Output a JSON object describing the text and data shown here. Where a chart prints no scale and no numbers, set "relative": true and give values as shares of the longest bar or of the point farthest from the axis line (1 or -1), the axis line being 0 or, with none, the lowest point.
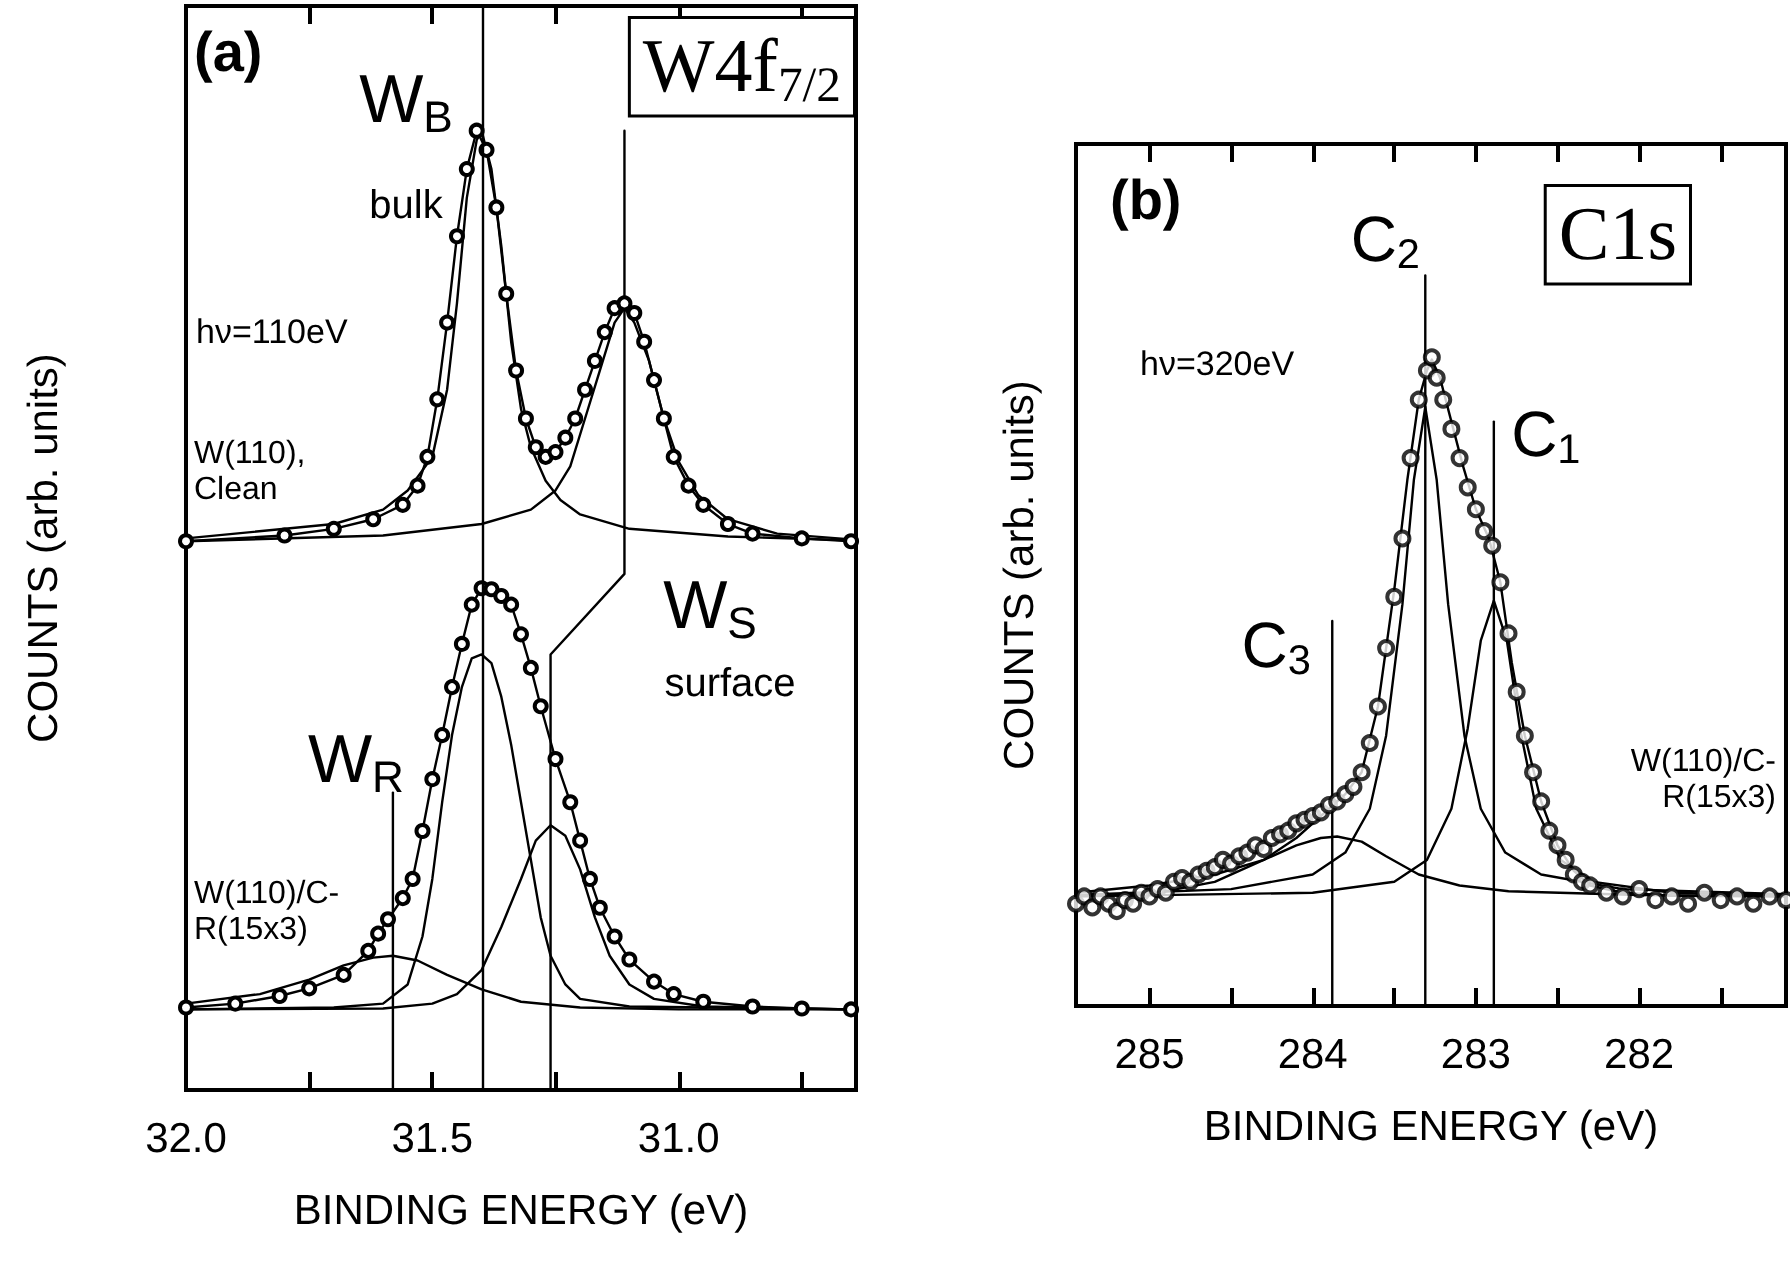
{
  "chart_data": [
    {
      "type": "line",
      "title": "(a)",
      "subtitle": "W4f$_{7/2}$",
      "xlabel": "BINDING ENERGY (eV)",
      "ylabel": "COUNTS (arb. units)",
      "relative": true,
      "tick_labels": "x",
      "xlim": [
        32.0,
        30.64
      ],
      "xticks": [
        {
          "value": 32,
          "label": "32.0"
        },
        {
          "value": 31.75,
          "label": null
        },
        31.5,
        {
          "value": 31.25,
          "label": null
        },
        {
          "value": 31,
          "label": "31.0"
        },
        {
          "value": 30.75,
          "label": null
        }
      ],
      "ref_lines": [
        {
          "axis": "x",
          "value": 31.4,
          "color": "#000000"
        }
      ],
      "annotations": [
        "W$_{B}$",
        "bulk",
        "W$_{S}$",
        "surface",
        "W$_{R}$",
        "hν=110eV",
        "W(110),\nClean",
        "W(110)/C-\nR(15x3)"
      ],
      "series": [
        {
          "color": "#000000",
          "marker": "circle",
          "x": [
            32.0,
            31.8,
            31.7,
            31.62,
            31.56,
            31.53,
            31.51,
            31.49,
            31.47,
            31.45,
            31.43,
            31.41,
            31.39,
            31.37,
            31.35,
            31.33,
            31.31,
            31.29,
            31.27,
            31.25,
            31.23,
            31.21,
            31.19,
            31.17,
            31.15,
            31.13,
            31.11,
            31.09,
            31.07,
            31.05,
            31.03,
            31.01,
            30.98,
            30.95,
            30.9,
            30.85,
            30.75,
            30.65
          ],
          "values": [
            0.572,
            0.578,
            0.585,
            0.595,
            0.61,
            0.63,
            0.66,
            0.72,
            0.8,
            0.89,
            0.96,
            1.0,
            0.98,
            0.92,
            0.83,
            0.75,
            0.7,
            0.67,
            0.66,
            0.665,
            0.68,
            0.7,
            0.73,
            0.76,
            0.79,
            0.815,
            0.82,
            0.81,
            0.78,
            0.74,
            0.7,
            0.66,
            0.63,
            0.61,
            0.59,
            0.58,
            0.575,
            0.572
          ]
        },
        {
          "color": "#000000",
          "marker": "none",
          "x": [
            32.0,
            31.7,
            31.6,
            31.55,
            31.5,
            31.47,
            31.45,
            31.43,
            31.41,
            31.4,
            31.38,
            31.36,
            31.34,
            31.32,
            31.3,
            31.27,
            31.24,
            31.2,
            31.1,
            30.9,
            30.65
          ],
          "values": [
            0.575,
            0.59,
            0.605,
            0.625,
            0.66,
            0.73,
            0.82,
            0.93,
            0.99,
            1.0,
            0.96,
            0.88,
            0.78,
            0.71,
            0.67,
            0.635,
            0.615,
            0.6,
            0.585,
            0.577,
            0.573
          ]
        },
        {
          "color": "#000000",
          "marker": "none",
          "x": [
            32.0,
            31.6,
            31.4,
            31.3,
            31.25,
            31.22,
            31.19,
            31.16,
            31.13,
            31.11,
            31.09,
            31.06,
            31.03,
            31.0,
            30.96,
            30.9,
            30.8,
            30.65
          ],
          "values": [
            0.572,
            0.578,
            0.59,
            0.605,
            0.625,
            0.65,
            0.7,
            0.75,
            0.8,
            0.815,
            0.8,
            0.76,
            0.7,
            0.655,
            0.62,
            0.595,
            0.58,
            0.574
          ]
        },
        {
          "color": "#000000",
          "marker": "circle",
          "x": [
            32.0,
            31.9,
            31.81,
            31.75,
            31.68,
            31.63,
            31.61,
            31.59,
            31.56,
            31.54,
            31.52,
            31.5,
            31.48,
            31.46,
            31.44,
            31.42,
            31.4,
            31.38,
            31.36,
            31.34,
            31.32,
            31.3,
            31.28,
            31.25,
            31.22,
            31.2,
            31.18,
            31.16,
            31.13,
            31.1,
            31.05,
            31.01,
            30.95,
            30.85,
            30.75,
            30.65
          ],
          "values": [
            0.086,
            0.09,
            0.098,
            0.106,
            0.12,
            0.145,
            0.163,
            0.178,
            0.2,
            0.22,
            0.27,
            0.324,
            0.37,
            0.42,
            0.465,
            0.506,
            0.523,
            0.522,
            0.515,
            0.506,
            0.475,
            0.44,
            0.4,
            0.345,
            0.3,
            0.26,
            0.22,
            0.19,
            0.16,
            0.136,
            0.113,
            0.1,
            0.092,
            0.087,
            0.085,
            0.084
          ]
        },
        {
          "color": "#000000",
          "marker": "none",
          "x": [
            32.0,
            31.7,
            31.6,
            31.55,
            31.52,
            31.5,
            31.48,
            31.46,
            31.44,
            31.42,
            31.4,
            31.38,
            31.36,
            31.34,
            31.32,
            31.3,
            31.28,
            31.26,
            31.23,
            31.2,
            31.1,
            30.65
          ],
          "values": [
            0.084,
            0.086,
            0.09,
            0.11,
            0.16,
            0.22,
            0.3,
            0.37,
            0.42,
            0.45,
            0.454,
            0.445,
            0.41,
            0.36,
            0.3,
            0.24,
            0.18,
            0.14,
            0.11,
            0.095,
            0.087,
            0.084
          ]
        },
        {
          "color": "#000000",
          "marker": "none",
          "x": [
            32.0,
            31.6,
            31.5,
            31.45,
            31.4,
            31.36,
            31.32,
            31.29,
            31.26,
            31.23,
            31.2,
            31.17,
            31.14,
            31.1,
            31.05,
            30.95,
            30.65
          ],
          "values": [
            0.084,
            0.085,
            0.09,
            0.1,
            0.125,
            0.17,
            0.22,
            0.26,
            0.276,
            0.265,
            0.23,
            0.18,
            0.14,
            0.11,
            0.095,
            0.087,
            0.084
          ]
        },
        {
          "color": "#000000",
          "marker": "none",
          "x": [
            32.0,
            31.85,
            31.75,
            31.68,
            31.62,
            31.58,
            31.53,
            31.47,
            31.4,
            31.32,
            31.2,
            31.0,
            30.65
          ],
          "values": [
            0.09,
            0.1,
            0.115,
            0.13,
            0.138,
            0.14,
            0.135,
            0.12,
            0.105,
            0.092,
            0.086,
            0.084,
            0.084
          ]
        },
        {
          "color": "#000000",
          "marker": "none",
          "x": [
            31.58,
            31.58
          ],
          "values": [
            0,
            0.31
          ]
        },
        {
          "color": "#000000",
          "marker": "none",
          "x": [
            31.11,
            31.11,
            31.26,
            31.26
          ],
          "values": [
            1.0,
            0.538,
            0.454,
            0
          ]
        }
      ]
    },
    {
      "type": "line",
      "title": "(b)",
      "subtitle": "C1s",
      "xlabel": "BINDING ENERGY (eV)",
      "ylabel": "COUNTS (arb. units)",
      "relative": true,
      "tick_labels": "x",
      "xlim": [
        285.45,
        281.1
      ],
      "xticks": [
        285,
        {
          "value": 284.5,
          "label": null
        },
        284,
        {
          "value": 283.5,
          "label": null
        },
        283,
        {
          "value": 282.5,
          "label": null
        },
        282,
        {
          "value": 281.5,
          "label": null
        }
      ],
      "annotations": [
        {
          "text": "C$_{2}$",
          "x": 283.31,
          "y": 1.0
        },
        {
          "text": "C$_{1}$",
          "x": 282.89,
          "y": 0.8
        },
        {
          "text": "C$_{3}$",
          "x": 283.88,
          "y": 0.527
        },
        "hν=320eV",
        "W(110)/C-\nR(15x3)"
      ],
      "series": [
        {
          "type": "scatter",
          "color": "#000000",
          "marker": "circle",
          "x": [
            285.45,
            285.4,
            285.35,
            285.3,
            285.25,
            285.2,
            285.15,
            285.1,
            285.05,
            285.0,
            284.95,
            284.9,
            284.85,
            284.8,
            284.75,
            284.7,
            284.65,
            284.6,
            284.55,
            284.5,
            284.45,
            284.4,
            284.35,
            284.3,
            284.25,
            284.2,
            284.15,
            284.1,
            284.05,
            284.0,
            283.95,
            283.9,
            283.85,
            283.8,
            283.75,
            283.7,
            283.65,
            283.6,
            283.55,
            283.5,
            283.45,
            283.4,
            283.35,
            283.3,
            283.27,
            283.24,
            283.2,
            283.15,
            283.1,
            283.05,
            283.0,
            282.95,
            282.9,
            282.85,
            282.8,
            282.75,
            282.7,
            282.65,
            282.6,
            282.55,
            282.5,
            282.45,
            282.4,
            282.35,
            282.3,
            282.2,
            282.1,
            282.0,
            281.9,
            281.8,
            281.7,
            281.6,
            281.5,
            281.4,
            281.3,
            281.2,
            281.1
          ],
          "values": [
            0.14,
            0.15,
            0.135,
            0.15,
            0.14,
            0.13,
            0.145,
            0.14,
            0.155,
            0.15,
            0.16,
            0.155,
            0.17,
            0.175,
            0.17,
            0.18,
            0.185,
            0.19,
            0.2,
            0.195,
            0.205,
            0.21,
            0.22,
            0.215,
            0.23,
            0.235,
            0.24,
            0.25,
            0.255,
            0.26,
            0.265,
            0.275,
            0.28,
            0.29,
            0.3,
            0.32,
            0.36,
            0.41,
            0.49,
            0.56,
            0.64,
            0.75,
            0.83,
            0.87,
            0.888,
            0.86,
            0.83,
            0.79,
            0.75,
            0.71,
            0.68,
            0.65,
            0.63,
            0.58,
            0.51,
            0.43,
            0.37,
            0.32,
            0.28,
            0.24,
            0.22,
            0.2,
            0.18,
            0.17,
            0.165,
            0.155,
            0.15,
            0.16,
            0.145,
            0.15,
            0.14,
            0.155,
            0.145,
            0.15,
            0.14,
            0.15,
            0.145
          ]
        },
        {
          "color": "#000000",
          "marker": "none",
          "x": [
            285.45,
            285.0,
            284.6,
            284.3,
            284.1,
            283.95,
            283.8,
            283.7,
            283.6,
            283.5,
            283.42,
            283.35,
            283.3,
            283.27,
            283.22,
            283.15,
            283.08,
            283.0,
            282.92,
            282.85,
            282.78,
            282.7,
            282.6,
            282.5,
            282.4,
            282.3,
            282.1,
            281.8,
            281.1
          ],
          "values": [
            0.15,
            0.153,
            0.17,
            0.2,
            0.23,
            0.26,
            0.29,
            0.32,
            0.41,
            0.57,
            0.72,
            0.83,
            0.87,
            0.885,
            0.86,
            0.8,
            0.74,
            0.68,
            0.64,
            0.58,
            0.47,
            0.37,
            0.28,
            0.22,
            0.185,
            0.165,
            0.155,
            0.151,
            0.15
          ]
        },
        {
          "color": "#000000",
          "marker": "none",
          "x": [
            285.45,
            284.5,
            284.0,
            283.8,
            283.65,
            283.55,
            283.45,
            283.38,
            283.31,
            283.24,
            283.17,
            283.07,
            282.97,
            282.82,
            282.6,
            282.1,
            281.1
          ],
          "values": [
            0.152,
            0.16,
            0.18,
            0.21,
            0.27,
            0.37,
            0.55,
            0.72,
            0.82,
            0.72,
            0.55,
            0.37,
            0.27,
            0.21,
            0.18,
            0.16,
            0.153
          ]
        },
        {
          "color": "#000000",
          "marker": "none",
          "x": [
            285.45,
            284.0,
            283.5,
            283.3,
            283.15,
            283.05,
            282.97,
            282.89,
            282.81,
            282.73,
            282.63,
            282.48,
            282.28,
            281.8,
            281.1
          ],
          "values": [
            0.15,
            0.155,
            0.17,
            0.2,
            0.27,
            0.38,
            0.5,
            0.555,
            0.5,
            0.38,
            0.27,
            0.2,
            0.17,
            0.155,
            0.151
          ]
        },
        {
          "color": "#000000",
          "marker": "none",
          "x": [
            285.45,
            285.0,
            284.6,
            284.3,
            284.1,
            283.95,
            283.85,
            283.7,
            283.55,
            283.35,
            283.1,
            282.8,
            282.0,
            281.1
          ],
          "values": [
            0.155,
            0.165,
            0.18,
            0.2,
            0.22,
            0.23,
            0.232,
            0.225,
            0.205,
            0.18,
            0.165,
            0.157,
            0.152,
            0.15
          ]
        },
        {
          "color": "#000000",
          "marker": "none",
          "x": [
            283.31,
            283.31
          ],
          "values": [
            0,
            1.0
          ]
        },
        {
          "color": "#000000",
          "marker": "none",
          "x": [
            282.89,
            282.89
          ],
          "values": [
            0,
            0.8
          ]
        },
        {
          "color": "#000000",
          "marker": "none",
          "x": [
            283.88,
            283.88
          ],
          "values": [
            0,
            0.527
          ]
        }
      ]
    }
  ]
}
